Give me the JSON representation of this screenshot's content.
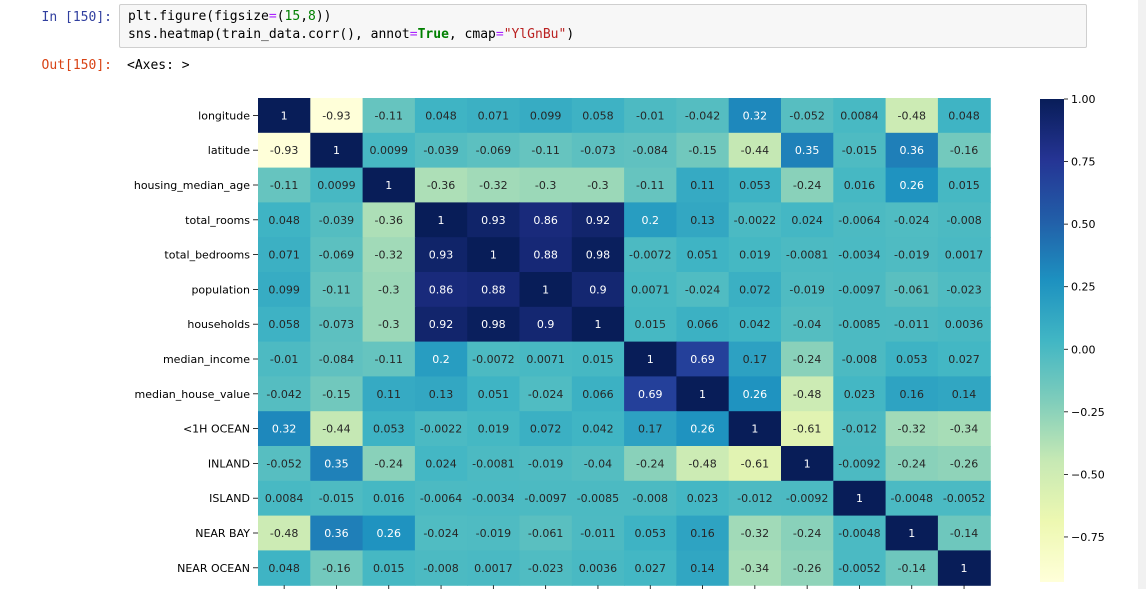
{
  "notebook": {
    "in_prompt": "In [150]:",
    "out_prompt": "Out[150]:",
    "output_text": "<Axes: >",
    "code": {
      "line1": [
        [
          "",
          "plt.figure(figsize"
        ],
        [
          "op",
          "="
        ],
        [
          "",
          "("
        ],
        [
          "num",
          "15"
        ],
        [
          "",
          ","
        ],
        [
          "num",
          "8"
        ],
        [
          "",
          "))"
        ]
      ],
      "line2": [
        [
          "",
          "sns.heatmap(train_data.corr(), annot"
        ],
        [
          "op",
          "="
        ],
        [
          "kw",
          "True"
        ],
        [
          "",
          ", cmap"
        ],
        [
          "op",
          "="
        ],
        [
          "str",
          "\"YlGnBu\""
        ],
        [
          "",
          ")"
        ]
      ]
    }
  },
  "chart_data": {
    "type": "heatmap",
    "title": "",
    "colormap": "YlGnBu",
    "labels": [
      "longitude",
      "latitude",
      "housing_median_age",
      "total_rooms",
      "total_bedrooms",
      "population",
      "households",
      "median_income",
      "median_house_value",
      "<1H OCEAN",
      "INLAND",
      "ISLAND",
      "NEAR BAY",
      "NEAR OCEAN"
    ],
    "matrix": [
      [
        "1",
        "-0.93",
        "-0.11",
        "0.048",
        "0.071",
        "0.099",
        "0.058",
        "-0.01",
        "-0.042",
        "0.32",
        "-0.052",
        "0.0084",
        "-0.48",
        "0.048"
      ],
      [
        "-0.93",
        "1",
        "0.0099",
        "-0.039",
        "-0.069",
        "-0.11",
        "-0.073",
        "-0.084",
        "-0.15",
        "-0.44",
        "0.35",
        "-0.015",
        "0.36",
        "-0.16"
      ],
      [
        "-0.11",
        "0.0099",
        "1",
        "-0.36",
        "-0.32",
        "-0.3",
        "-0.3",
        "-0.11",
        "0.11",
        "0.053",
        "-0.24",
        "0.016",
        "0.26",
        "0.015"
      ],
      [
        "0.048",
        "-0.039",
        "-0.36",
        "1",
        "0.93",
        "0.86",
        "0.92",
        "0.2",
        "0.13",
        "-0.0022",
        "0.024",
        "-0.0064",
        "-0.024",
        "-0.008"
      ],
      [
        "0.071",
        "-0.069",
        "-0.32",
        "0.93",
        "1",
        "0.88",
        "0.98",
        "-0.0072",
        "0.051",
        "0.019",
        "-0.0081",
        "-0.0034",
        "-0.019",
        "0.0017"
      ],
      [
        "0.099",
        "-0.11",
        "-0.3",
        "0.86",
        "0.88",
        "1",
        "0.9",
        "0.0071",
        "-0.024",
        "0.072",
        "-0.019",
        "-0.0097",
        "-0.061",
        "-0.023"
      ],
      [
        "0.058",
        "-0.073",
        "-0.3",
        "0.92",
        "0.98",
        "0.9",
        "1",
        "0.015",
        "0.066",
        "0.042",
        "-0.04",
        "-0.0085",
        "-0.011",
        "0.0036"
      ],
      [
        "-0.01",
        "-0.084",
        "-0.11",
        "0.2",
        "-0.0072",
        "0.0071",
        "0.015",
        "1",
        "0.69",
        "0.17",
        "-0.24",
        "-0.008",
        "0.053",
        "0.027"
      ],
      [
        "-0.042",
        "-0.15",
        "0.11",
        "0.13",
        "0.051",
        "-0.024",
        "0.066",
        "0.69",
        "1",
        "0.26",
        "-0.48",
        "0.023",
        "0.16",
        "0.14"
      ],
      [
        "0.32",
        "-0.44",
        "0.053",
        "-0.0022",
        "0.019",
        "0.072",
        "0.042",
        "0.17",
        "0.26",
        "1",
        "-0.61",
        "-0.012",
        "-0.32",
        "-0.34"
      ],
      [
        "-0.052",
        "0.35",
        "-0.24",
        "0.024",
        "-0.0081",
        "-0.019",
        "-0.04",
        "-0.24",
        "-0.48",
        "-0.61",
        "1",
        "-0.0092",
        "-0.24",
        "-0.26"
      ],
      [
        "0.0084",
        "-0.015",
        "0.016",
        "-0.0064",
        "-0.0034",
        "-0.0097",
        "-0.0085",
        "-0.008",
        "0.023",
        "-0.012",
        "-0.0092",
        "1",
        "-0.0048",
        "-0.0052"
      ],
      [
        "-0.48",
        "0.36",
        "0.26",
        "-0.024",
        "-0.019",
        "-0.061",
        "-0.011",
        "0.053",
        "0.16",
        "-0.32",
        "-0.24",
        "-0.0048",
        "1",
        "-0.14"
      ],
      [
        "0.048",
        "-0.16",
        "0.015",
        "-0.008",
        "0.0017",
        "-0.023",
        "0.0036",
        "0.027",
        "0.14",
        "-0.34",
        "-0.26",
        "-0.0052",
        "-0.14",
        "1"
      ]
    ],
    "vmin": -0.93,
    "vmax": 1.0,
    "colorbar_ticks": [
      "1.00",
      "0.75",
      "0.50",
      "0.25",
      "0.00",
      "−0.25",
      "−0.50",
      "−0.75"
    ],
    "colorbar_tick_values": [
      1.0,
      0.75,
      0.5,
      0.25,
      0.0,
      -0.25,
      -0.5,
      -0.75
    ],
    "annotations": true
  }
}
